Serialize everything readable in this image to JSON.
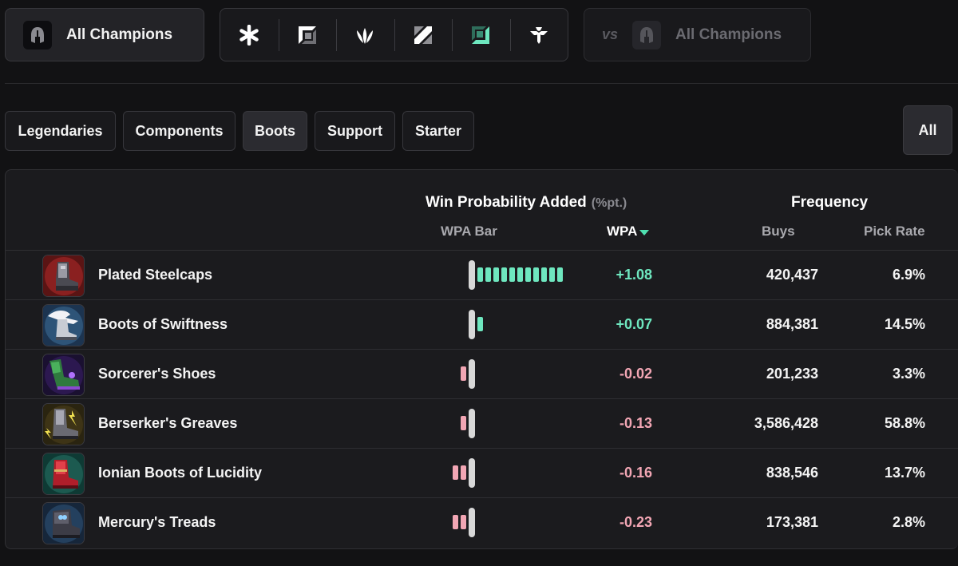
{
  "champion_select": {
    "label": "All Champions",
    "icon": "helmet-icon"
  },
  "roles": [
    {
      "name": "all-roles",
      "icon": "asterisk-icon",
      "active": false
    },
    {
      "name": "top",
      "icon": "top-lane-icon",
      "active": false
    },
    {
      "name": "jungle",
      "icon": "jungle-icon",
      "active": false
    },
    {
      "name": "mid",
      "icon": "mid-lane-icon",
      "active": false
    },
    {
      "name": "bot",
      "icon": "bot-lane-icon",
      "active": true
    },
    {
      "name": "support",
      "icon": "support-icon",
      "active": false
    }
  ],
  "vs_select": {
    "vs_label": "vs",
    "label": "All Champions",
    "icon": "helmet-icon"
  },
  "tabs": [
    {
      "label": "Legendaries",
      "active": false
    },
    {
      "label": "Components",
      "active": false
    },
    {
      "label": "Boots",
      "active": true
    },
    {
      "label": "Support",
      "active": false
    },
    {
      "label": "Starter",
      "active": false
    }
  ],
  "all_button": "All",
  "table": {
    "wpa_header": "Win Probability Added",
    "wpa_unit": "(%pt.)",
    "freq_header": "Frequency",
    "col_wpa_bar": "WPA Bar",
    "col_wpa": "WPA",
    "col_buys": "Buys",
    "col_pick_rate": "Pick Rate",
    "rows": [
      {
        "name": "Plated Steelcaps",
        "wpa": "+1.08",
        "wpa_value": 1.08,
        "buys": "420,437",
        "pick_rate": "6.9%"
      },
      {
        "name": "Boots of Swiftness",
        "wpa": "+0.07",
        "wpa_value": 0.07,
        "buys": "884,381",
        "pick_rate": "14.5%"
      },
      {
        "name": "Sorcerer's Shoes",
        "wpa": "-0.02",
        "wpa_value": -0.02,
        "buys": "201,233",
        "pick_rate": "3.3%"
      },
      {
        "name": "Berserker's Greaves",
        "wpa": "-0.13",
        "wpa_value": -0.13,
        "buys": "3,586,428",
        "pick_rate": "58.8%"
      },
      {
        "name": "Ionian Boots of Lucidity",
        "wpa": "-0.16",
        "wpa_value": -0.16,
        "buys": "838,546",
        "pick_rate": "13.7%"
      },
      {
        "name": "Mercury's Treads",
        "wpa": "-0.23",
        "wpa_value": -0.23,
        "buys": "173,381",
        "pick_rate": "2.8%"
      }
    ]
  },
  "colors": {
    "positive": "#6ee7bf",
    "negative": "#f2a6b4",
    "accent": "#4fe0b0"
  }
}
